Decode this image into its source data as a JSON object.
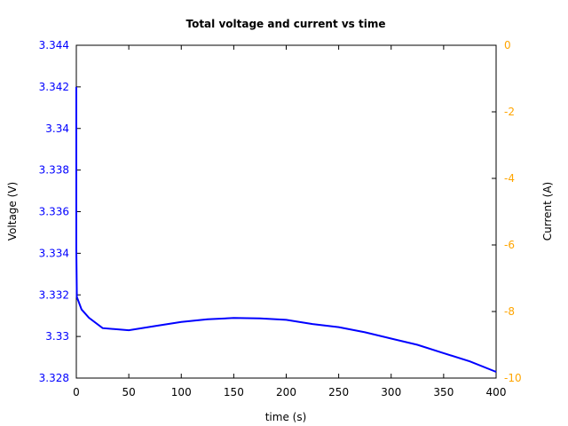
{
  "chart_data": {
    "type": "line",
    "title": "Total voltage and current vs time",
    "xlabel": "time (s)",
    "ylabel": "Voltage (V)",
    "y2label": "Current (A)",
    "xlim": [
      0,
      400
    ],
    "ylim": [
      3.328,
      3.344
    ],
    "y2lim": [
      -10,
      0
    ],
    "x_ticks": [
      0,
      50,
      100,
      150,
      200,
      250,
      300,
      350,
      400
    ],
    "y_ticks": [
      "3.328",
      "3.33",
      "3.332",
      "3.334",
      "3.336",
      "3.338",
      "3.34",
      "3.342",
      "3.344"
    ],
    "y2_ticks": [
      "-10",
      "-8",
      "-6",
      "-4",
      "-2",
      "0"
    ],
    "grid": false,
    "legend": null,
    "colors": {
      "voltage": "#0000ff",
      "y_tick_color": "#0000ff",
      "y2_tick_color": "#ffa500",
      "axis": "#000000"
    },
    "series": [
      {
        "name": "Voltage",
        "axis": "left",
        "x": [
          0,
          0,
          0.5,
          5,
          12,
          25,
          50,
          75,
          100,
          125,
          150,
          175,
          200,
          225,
          250,
          275,
          300,
          325,
          350,
          375,
          400
        ],
        "values": [
          3.342,
          3.3342,
          3.3319,
          3.3313,
          3.3309,
          3.3304,
          3.3303,
          3.3305,
          3.3307,
          3.33083,
          3.33089,
          3.33087,
          3.3308,
          3.3306,
          3.33045,
          3.3302,
          3.3299,
          3.3296,
          3.3292,
          3.3288,
          3.3283
        ]
      }
    ]
  }
}
